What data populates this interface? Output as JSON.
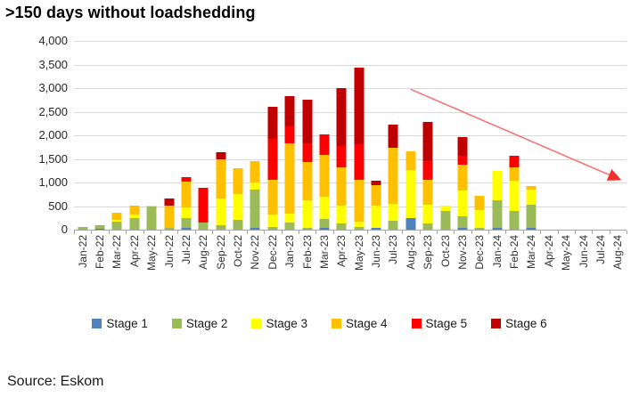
{
  "title": ">150 days without loadshedding",
  "source": "Source: Eskom",
  "colors": {
    "gridline": "#d9d9d9",
    "axis": "#a6a6a6",
    "arrow_line": "#f87577",
    "arrow_head": "#f62d28",
    "text": "#262626"
  },
  "chart_data": {
    "type": "bar",
    "stacked": true,
    "title": ">150 days without loadshedding",
    "xlabel": "",
    "ylabel": "",
    "ylim": [
      0,
      4000
    ],
    "grid": true,
    "legend_position": "bottom",
    "ytick_values": [
      0,
      500,
      1000,
      1500,
      2000,
      2500,
      3000,
      3500,
      4000
    ],
    "ytick_labels": [
      "0",
      "500",
      "1,000",
      "1,500",
      "2,000",
      "2,500",
      "3,000",
      "3,500",
      "4,000"
    ],
    "categories": [
      "Jan-22",
      "Feb-22",
      "Mar-22",
      "Apr-22",
      "May-22",
      "Jun-22",
      "Jul-22",
      "Aug-22",
      "Sep-22",
      "Oct-22",
      "Nov-22",
      "Dec-22",
      "Jan-23",
      "Feb-23",
      "Mar-23",
      "Apr-23",
      "May-23",
      "Jun-23",
      "Jul-23",
      "Aug-23",
      "Sep-23",
      "Oct-23",
      "Nov-23",
      "Dec-23",
      "Jan-24",
      "Feb-24",
      "Mar-24",
      "Apr-24",
      "May-24",
      "Jun-24",
      "Jul-24",
      "Aug-24"
    ],
    "series": [
      {
        "name": "Stage 1",
        "color": "#4E81BD",
        "values": [
          0,
          25,
          0,
          0,
          0,
          0,
          40,
          0,
          0,
          0,
          40,
          0,
          0,
          0,
          30,
          0,
          0,
          45,
          0,
          240,
          0,
          0,
          30,
          0,
          45,
          0,
          30,
          0,
          0,
          0,
          0,
          0
        ]
      },
      {
        "name": "Stage 2",
        "color": "#9BBB59",
        "values": [
          60,
          75,
          175,
          245,
          490,
          30,
          200,
          155,
          100,
          200,
          810,
          50,
          150,
          40,
          195,
          140,
          65,
          0,
          195,
          0,
          135,
          405,
          250,
          45,
          580,
          400,
          500,
          0,
          0,
          0,
          0,
          0
        ]
      },
      {
        "name": "Stage 3",
        "color": "#FFFF00",
        "values": [
          0,
          0,
          25,
          75,
          25,
          0,
          225,
          0,
          570,
          550,
          145,
          280,
          195,
          590,
          470,
          375,
          110,
          470,
          355,
          1030,
          400,
          100,
          550,
          375,
          615,
          645,
          320,
          0,
          0,
          0,
          0,
          0
        ]
      },
      {
        "name": "Stage 4",
        "color": "#FFC000",
        "values": [
          0,
          0,
          165,
          190,
          0,
          480,
          550,
          0,
          830,
          560,
          455,
          735,
          1480,
          810,
          885,
          805,
          890,
          420,
          1190,
          400,
          530,
          0,
          550,
          300,
          0,
          280,
          70,
          0,
          0,
          0,
          0,
          0
        ]
      },
      {
        "name": "Stage 5",
        "color": "#FF0000",
        "values": [
          0,
          0,
          0,
          0,
          0,
          0,
          105,
          730,
          0,
          0,
          0,
          855,
          355,
          385,
          440,
          455,
          755,
          0,
          0,
          0,
          385,
          0,
          195,
          0,
          0,
          235,
          0,
          0,
          0,
          0,
          0,
          0
        ]
      },
      {
        "name": "Stage 6",
        "color": "#C00000",
        "values": [
          0,
          0,
          0,
          0,
          0,
          150,
          0,
          0,
          150,
          0,
          0,
          690,
          660,
          935,
          0,
          1235,
          1610,
          110,
          485,
          0,
          840,
          0,
          390,
          0,
          0,
          0,
          0,
          0,
          0,
          0,
          0,
          0
        ]
      }
    ],
    "annotation_arrow": {
      "from": {
        "month": "Aug-23",
        "value": 2975
      },
      "to": {
        "month": "Aug-24",
        "value": 1050
      }
    }
  }
}
